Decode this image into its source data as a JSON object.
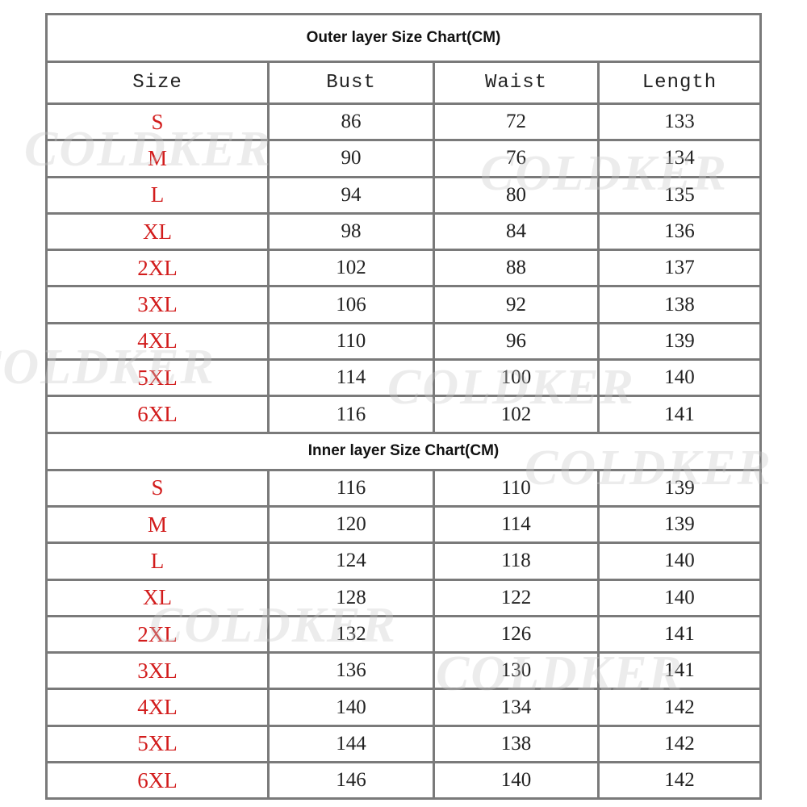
{
  "columns": [
    "Size",
    "Bust",
    "Waist",
    "Length"
  ],
  "outer": {
    "title": "Outer layer Size Chart(CM)",
    "rows": [
      [
        "S",
        "86",
        "72",
        "133"
      ],
      [
        "M",
        "90",
        "76",
        "134"
      ],
      [
        "L",
        "94",
        "80",
        "135"
      ],
      [
        "XL",
        "98",
        "84",
        "136"
      ],
      [
        "2XL",
        "102",
        "88",
        "137"
      ],
      [
        "3XL",
        "106",
        "92",
        "138"
      ],
      [
        "4XL",
        "110",
        "96",
        "139"
      ],
      [
        "5XL",
        "114",
        "100",
        "140"
      ],
      [
        "6XL",
        "116",
        "102",
        "141"
      ]
    ]
  },
  "inner": {
    "title": "Inner layer Size Chart(CM)",
    "rows": [
      [
        "S",
        "116",
        "110",
        "139"
      ],
      [
        "M",
        "120",
        "114",
        "139"
      ],
      [
        "L",
        "124",
        "118",
        "140"
      ],
      [
        "XL",
        "128",
        "122",
        "140"
      ],
      [
        "2XL",
        "132",
        "126",
        "141"
      ],
      [
        "3XL",
        "136",
        "130",
        "141"
      ],
      [
        "4XL",
        "140",
        "134",
        "142"
      ],
      [
        "5XL",
        "144",
        "138",
        "142"
      ],
      [
        "6XL",
        "146",
        "140",
        "142"
      ]
    ]
  },
  "watermark": "COLDKER",
  "colors": {
    "size_text": "#d21c1c",
    "grid": "#7a7a7a"
  }
}
